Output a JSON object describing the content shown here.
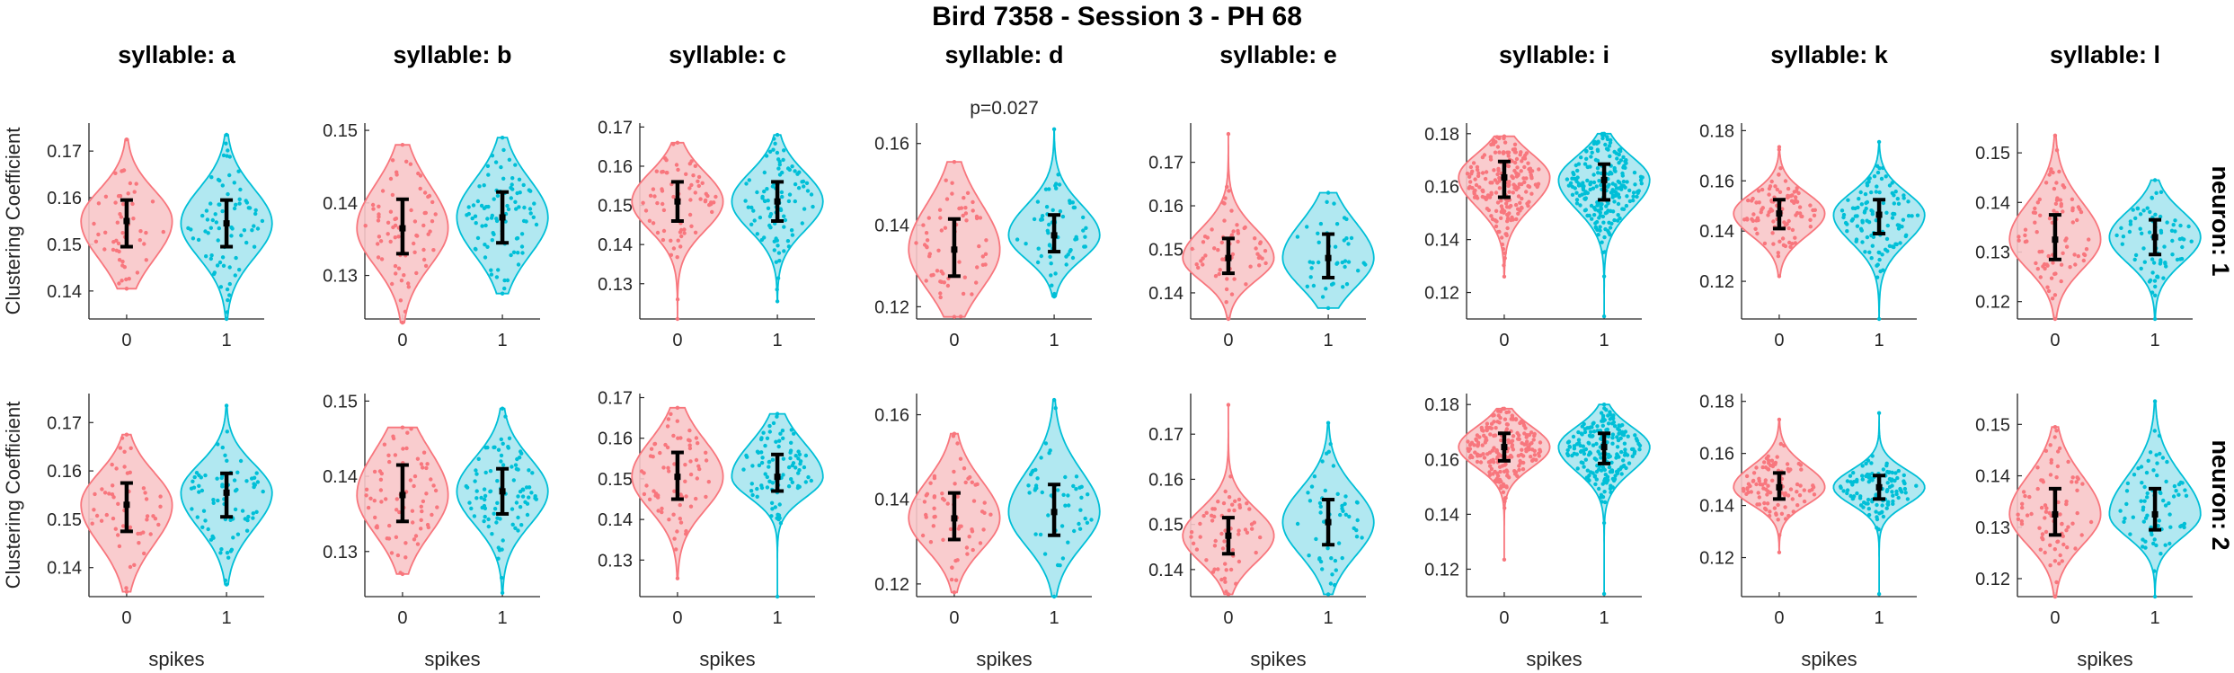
{
  "figure_title": "Bird 7358 - Session 3 - PH 68",
  "colors": {
    "spikes_0": "#F8767D",
    "spikes_1": "#00BFD7",
    "fill_0": "#F8C6C9",
    "fill_1": "#A9E6EF",
    "axis": "#262626"
  },
  "chart_data": {
    "type": "violin",
    "title": "Bird 7358 - Session 3 - PH 68",
    "xlabel": "spikes",
    "ylabel": "Clustering Coefficient",
    "categories": [
      "0",
      "1"
    ],
    "columns": [
      "syllable: a",
      "syllable: b",
      "syllable: c",
      "syllable: d",
      "syllable: e",
      "syllable: i",
      "syllable: k",
      "syllable: l"
    ],
    "rows": [
      "neuron: 1",
      "neuron: 2"
    ],
    "panels": [
      {
        "row": "neuron: 1",
        "col": "syllable: a",
        "ylim": [
          0.134,
          0.176
        ],
        "yticks": [
          0.14,
          0.15,
          0.16,
          0.17
        ],
        "annotation": "",
        "series": [
          {
            "x": "0",
            "median": 0.155,
            "q1": 0.1495,
            "q3": 0.1595,
            "min": 0.1405,
            "max": 0.1725,
            "n": 50
          },
          {
            "x": "1",
            "median": 0.1545,
            "q1": 0.1495,
            "q3": 0.1595,
            "min": 0.134,
            "max": 0.1735,
            "n": 75
          }
        ]
      },
      {
        "row": "neuron: 1",
        "col": "syllable: b",
        "ylim": [
          0.124,
          0.151
        ],
        "yticks": [
          0.13,
          0.14,
          0.15
        ],
        "annotation": "",
        "series": [
          {
            "x": "0",
            "median": 0.1365,
            "q1": 0.133,
            "q3": 0.1405,
            "min": 0.1235,
            "max": 0.148,
            "n": 70
          },
          {
            "x": "1",
            "median": 0.138,
            "q1": 0.1345,
            "q3": 0.1415,
            "min": 0.1275,
            "max": 0.149,
            "n": 90
          }
        ]
      },
      {
        "row": "neuron: 1",
        "col": "syllable: c",
        "ylim": [
          0.121,
          0.171
        ],
        "yticks": [
          0.13,
          0.14,
          0.15,
          0.16,
          0.17
        ],
        "annotation": "",
        "series": [
          {
            "x": "0",
            "median": 0.151,
            "q1": 0.146,
            "q3": 0.156,
            "min": 0.121,
            "max": 0.166,
            "n": 70
          },
          {
            "x": "1",
            "median": 0.151,
            "q1": 0.146,
            "q3": 0.156,
            "min": 0.1255,
            "max": 0.168,
            "n": 90
          }
        ]
      },
      {
        "row": "neuron: 1",
        "col": "syllable: d",
        "ylim": [
          0.117,
          0.165
        ],
        "yticks": [
          0.12,
          0.14,
          0.16
        ],
        "annotation": "p=0.027",
        "series": [
          {
            "x": "0",
            "median": 0.134,
            "q1": 0.1275,
            "q3": 0.1415,
            "min": 0.1175,
            "max": 0.1555,
            "n": 60
          },
          {
            "x": "1",
            "median": 0.1375,
            "q1": 0.1335,
            "q3": 0.1425,
            "min": 0.1225,
            "max": 0.1635,
            "n": 60
          }
        ]
      },
      {
        "row": "neuron: 1",
        "col": "syllable: e",
        "ylim": [
          0.134,
          0.179
        ],
        "yticks": [
          0.14,
          0.15,
          0.16,
          0.17
        ],
        "annotation": "",
        "series": [
          {
            "x": "0",
            "median": 0.148,
            "q1": 0.1445,
            "q3": 0.1525,
            "min": 0.134,
            "max": 0.1765,
            "n": 60
          },
          {
            "x": "1",
            "median": 0.148,
            "q1": 0.1435,
            "q3": 0.1535,
            "min": 0.1365,
            "max": 0.163,
            "n": 40
          }
        ]
      },
      {
        "row": "neuron: 1",
        "col": "syllable: i",
        "ylim": [
          0.11,
          0.184
        ],
        "yticks": [
          0.12,
          0.14,
          0.16,
          0.18
        ],
        "annotation": "",
        "series": [
          {
            "x": "0",
            "median": 0.1635,
            "q1": 0.156,
            "q3": 0.1695,
            "min": 0.126,
            "max": 0.179,
            "n": 200
          },
          {
            "x": "1",
            "median": 0.1625,
            "q1": 0.155,
            "q3": 0.1685,
            "min": 0.111,
            "max": 0.18,
            "n": 220
          }
        ]
      },
      {
        "row": "neuron: 1",
        "col": "syllable: k",
        "ylim": [
          0.105,
          0.183
        ],
        "yticks": [
          0.12,
          0.14,
          0.16,
          0.18
        ],
        "annotation": "",
        "series": [
          {
            "x": "0",
            "median": 0.147,
            "q1": 0.141,
            "q3": 0.1525,
            "min": 0.122,
            "max": 0.1735,
            "n": 100
          },
          {
            "x": "1",
            "median": 0.1465,
            "q1": 0.139,
            "q3": 0.1525,
            "min": 0.105,
            "max": 0.1755,
            "n": 110
          }
        ]
      },
      {
        "row": "neuron: 1",
        "col": "syllable: l",
        "ylim": [
          0.1165,
          0.156
        ],
        "yticks": [
          0.12,
          0.13,
          0.14,
          0.15
        ],
        "annotation": "",
        "series": [
          {
            "x": "0",
            "median": 0.1325,
            "q1": 0.1285,
            "q3": 0.1375,
            "min": 0.1165,
            "max": 0.1535,
            "n": 80
          },
          {
            "x": "1",
            "median": 0.133,
            "q1": 0.1295,
            "q3": 0.1365,
            "min": 0.1165,
            "max": 0.1445,
            "n": 75
          }
        ]
      },
      {
        "row": "neuron: 2",
        "col": "syllable: a",
        "ylim": [
          0.134,
          0.176
        ],
        "yticks": [
          0.14,
          0.15,
          0.16,
          0.17
        ],
        "annotation": "",
        "series": [
          {
            "x": "0",
            "median": 0.153,
            "q1": 0.1475,
            "q3": 0.1575,
            "min": 0.135,
            "max": 0.1675,
            "n": 50
          },
          {
            "x": "1",
            "median": 0.1555,
            "q1": 0.1505,
            "q3": 0.1595,
            "min": 0.1365,
            "max": 0.1735,
            "n": 75
          }
        ]
      },
      {
        "row": "neuron: 2",
        "col": "syllable: b",
        "ylim": [
          0.124,
          0.151
        ],
        "yticks": [
          0.13,
          0.14,
          0.15
        ],
        "annotation": "",
        "series": [
          {
            "x": "0",
            "median": 0.1375,
            "q1": 0.134,
            "q3": 0.1415,
            "min": 0.127,
            "max": 0.1465,
            "n": 70
          },
          {
            "x": "1",
            "median": 0.138,
            "q1": 0.135,
            "q3": 0.141,
            "min": 0.1245,
            "max": 0.149,
            "n": 90
          }
        ]
      },
      {
        "row": "neuron: 2",
        "col": "syllable: c",
        "ylim": [
          0.121,
          0.171
        ],
        "yticks": [
          0.13,
          0.14,
          0.15,
          0.16,
          0.17
        ],
        "annotation": "",
        "series": [
          {
            "x": "0",
            "median": 0.1505,
            "q1": 0.145,
            "q3": 0.1565,
            "min": 0.1255,
            "max": 0.1675,
            "n": 70
          },
          {
            "x": "1",
            "median": 0.1505,
            "q1": 0.147,
            "q3": 0.156,
            "min": 0.121,
            "max": 0.166,
            "n": 90
          }
        ]
      },
      {
        "row": "neuron: 2",
        "col": "syllable: d",
        "ylim": [
          0.117,
          0.165
        ],
        "yticks": [
          0.12,
          0.14,
          0.16
        ],
        "annotation": "",
        "series": [
          {
            "x": "0",
            "median": 0.1355,
            "q1": 0.1305,
            "q3": 0.1415,
            "min": 0.118,
            "max": 0.1555,
            "n": 60
          },
          {
            "x": "1",
            "median": 0.137,
            "q1": 0.1315,
            "q3": 0.1435,
            "min": 0.117,
            "max": 0.1635,
            "n": 50
          }
        ]
      },
      {
        "row": "neuron: 2",
        "col": "syllable: e",
        "ylim": [
          0.134,
          0.179
        ],
        "yticks": [
          0.14,
          0.15,
          0.16,
          0.17
        ],
        "annotation": "",
        "series": [
          {
            "x": "0",
            "median": 0.1475,
            "q1": 0.1435,
            "q3": 0.1515,
            "min": 0.1345,
            "max": 0.1765,
            "n": 60
          },
          {
            "x": "1",
            "median": 0.1505,
            "q1": 0.1455,
            "q3": 0.1555,
            "min": 0.1345,
            "max": 0.1725,
            "n": 50
          }
        ]
      },
      {
        "row": "neuron: 2",
        "col": "syllable: i",
        "ylim": [
          0.11,
          0.184
        ],
        "yticks": [
          0.12,
          0.14,
          0.16,
          0.18
        ],
        "annotation": "",
        "series": [
          {
            "x": "0",
            "median": 0.1645,
            "q1": 0.1595,
            "q3": 0.1695,
            "min": 0.1235,
            "max": 0.1785,
            "n": 200
          },
          {
            "x": "1",
            "median": 0.1645,
            "q1": 0.1585,
            "q3": 0.1695,
            "min": 0.111,
            "max": 0.18,
            "n": 220
          }
        ]
      },
      {
        "row": "neuron: 2",
        "col": "syllable: k",
        "ylim": [
          0.105,
          0.183
        ],
        "yticks": [
          0.12,
          0.14,
          0.16,
          0.18
        ],
        "annotation": "",
        "series": [
          {
            "x": "0",
            "median": 0.147,
            "q1": 0.1425,
            "q3": 0.1525,
            "min": 0.122,
            "max": 0.173,
            "n": 100
          },
          {
            "x": "1",
            "median": 0.147,
            "q1": 0.1425,
            "q3": 0.1515,
            "min": 0.106,
            "max": 0.1755,
            "n": 110
          }
        ]
      },
      {
        "row": "neuron: 2",
        "col": "syllable: l",
        "ylim": [
          0.1165,
          0.156
        ],
        "yticks": [
          0.12,
          0.13,
          0.14,
          0.15
        ],
        "annotation": "",
        "series": [
          {
            "x": "0",
            "median": 0.1325,
            "q1": 0.1285,
            "q3": 0.1375,
            "min": 0.1165,
            "max": 0.1495,
            "n": 80
          },
          {
            "x": "1",
            "median": 0.1325,
            "q1": 0.1295,
            "q3": 0.1375,
            "min": 0.1165,
            "max": 0.1545,
            "n": 75
          }
        ]
      }
    ]
  }
}
